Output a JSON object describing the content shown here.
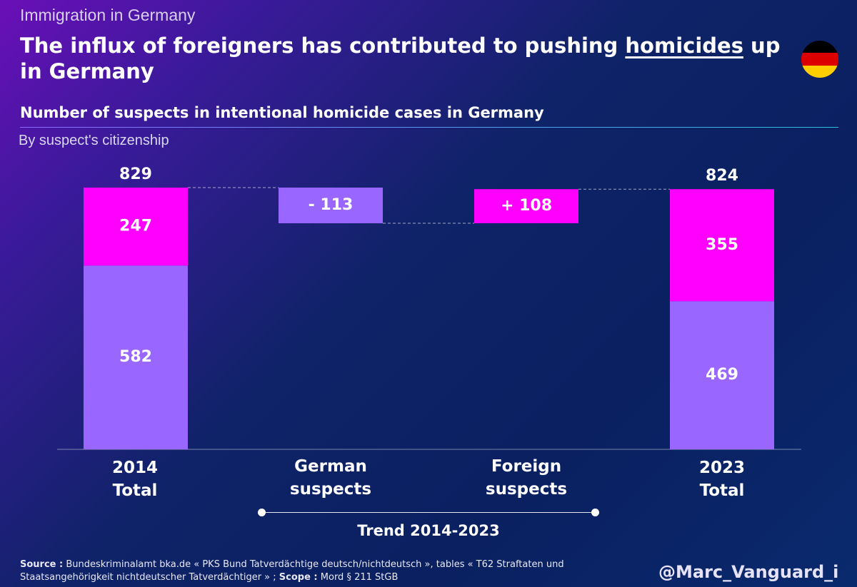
{
  "header": {
    "kicker": "Immigration in Germany",
    "headline_pre": "The influx of foreigners has contributed to pushing ",
    "headline_ul": "homicides",
    "headline_post": " up in Germany",
    "subtitle": "Number of suspects in intentional homicide cases in Germany",
    "subsubtitle": "By suspect's citizenship"
  },
  "flag_colors": [
    "#000000",
    "#dd0000",
    "#ffce00"
  ],
  "chart_data": {
    "type": "bar",
    "subtype": "waterfall",
    "title": "Number of suspects in intentional homicide cases in Germany",
    "ylim": [
      0,
      829
    ],
    "colors": {
      "german": "#9966ff",
      "foreign": "#ff00ff"
    },
    "totals": [
      {
        "key": "2014",
        "label": [
          "2014",
          "Total"
        ],
        "total": 829,
        "german": 582,
        "foreign": 247
      },
      {
        "key": "2023",
        "label": [
          "2023",
          "Total"
        ],
        "total": 824,
        "german": 469,
        "foreign": 355
      }
    ],
    "changes": [
      {
        "key": "german",
        "label": [
          "German",
          "suspects"
        ],
        "value": -113,
        "display": "- 113"
      },
      {
        "key": "foreign",
        "label": [
          "Foreign",
          "suspects"
        ],
        "value": 108,
        "display": "+ 108"
      }
    ]
  },
  "trend_label": "Trend 2014-2023",
  "source": {
    "source_label": "Source :",
    "source_text": " Bundeskriminalamt bka.de « PKS Bund Tatverdächtige deutsch/nichtdeutsch », tables « T62 Straftaten und Staatsangehörigkeit nichtdeutscher Tatverdächtiger »  ; ",
    "scope_label": "Scope :",
    "scope_text": " Mord § 211 StGB"
  },
  "handle": "@Marc_Vanguard_i"
}
